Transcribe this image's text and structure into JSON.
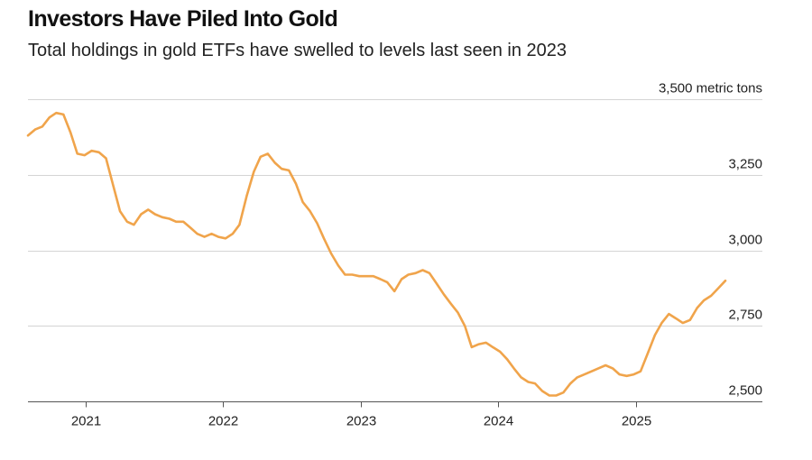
{
  "chart_data": {
    "type": "line",
    "title": "Investors Have Piled Into Gold",
    "subtitle": "Total holdings in gold ETFs have swelled to levels last seen in 2023",
    "ylabel": "",
    "xlabel": "",
    "yunit": "metric tons",
    "ylim": [
      2450,
      3560
    ],
    "xlim": [
      "2020-08-01",
      "2025-12-01"
    ],
    "grid": true,
    "legend": "none",
    "line_color": "#F0A44B",
    "y_ticks": [
      {
        "value": 2500,
        "label": "2,500"
      },
      {
        "value": 2750,
        "label": "2,750"
      },
      {
        "value": 3000,
        "label": "3,000"
      },
      {
        "value": 3250,
        "label": "3,250"
      },
      {
        "value": 3500,
        "label": "3,500 metric tons"
      }
    ],
    "x_ticks": [
      {
        "value": "2021-01-01",
        "label": "2021"
      },
      {
        "value": "2022-01-01",
        "label": "2022"
      },
      {
        "value": "2023-01-01",
        "label": "2023"
      },
      {
        "value": "2024-01-01",
        "label": "2024"
      },
      {
        "value": "2025-01-01",
        "label": "2025"
      }
    ],
    "series": [
      {
        "x": [
          "2020-08-01",
          "2020-08-20",
          "2020-09-08",
          "2020-09-27",
          "2020-10-15",
          "2020-11-03",
          "2020-11-22",
          "2020-12-10",
          "2020-12-29",
          "2021-01-17",
          "2021-02-05",
          "2021-02-24",
          "2021-03-14",
          "2021-04-02",
          "2021-04-21",
          "2021-05-09",
          "2021-05-28",
          "2021-06-16",
          "2021-07-04",
          "2021-07-23",
          "2021-08-11",
          "2021-08-29",
          "2021-09-17",
          "2021-10-06",
          "2021-10-24",
          "2021-11-12",
          "2021-12-01",
          "2021-12-19",
          "2022-01-07",
          "2022-01-26",
          "2022-02-13",
          "2022-03-04",
          "2022-03-23",
          "2022-04-10",
          "2022-04-29",
          "2022-05-18",
          "2022-06-05",
          "2022-06-24",
          "2022-07-13",
          "2022-07-31",
          "2022-08-19",
          "2022-09-07",
          "2022-09-25",
          "2022-10-14",
          "2022-11-02",
          "2022-11-20",
          "2022-12-09",
          "2022-12-28",
          "2023-01-15",
          "2023-02-03",
          "2023-02-22",
          "2023-03-12",
          "2023-03-31",
          "2023-04-19",
          "2023-05-07",
          "2023-05-26",
          "2023-06-14",
          "2023-07-02",
          "2023-07-21",
          "2023-08-09",
          "2023-08-27",
          "2023-09-15",
          "2023-10-04",
          "2023-10-22",
          "2023-11-10",
          "2023-11-29",
          "2023-12-17",
          "2024-01-05",
          "2024-01-24",
          "2024-02-11",
          "2024-03-01",
          "2024-03-20",
          "2024-04-07",
          "2024-04-26",
          "2024-05-15",
          "2024-06-02",
          "2024-06-21",
          "2024-07-10",
          "2024-07-28",
          "2024-08-16",
          "2024-09-04",
          "2024-09-22",
          "2024-10-11",
          "2024-10-30",
          "2024-11-17",
          "2024-12-06",
          "2024-12-25",
          "2025-01-12",
          "2025-01-31",
          "2025-02-19",
          "2025-03-09",
          "2025-03-28",
          "2025-04-16",
          "2025-05-04",
          "2025-05-23",
          "2025-06-11",
          "2025-06-29",
          "2025-07-18",
          "2025-08-06",
          "2025-08-25"
        ],
        "values": [
          3380,
          3400,
          3410,
          3440,
          3455,
          3450,
          3390,
          3320,
          3315,
          3330,
          3325,
          3305,
          3220,
          3130,
          3095,
          3085,
          3120,
          3135,
          3120,
          3110,
          3105,
          3095,
          3095,
          3075,
          3055,
          3045,
          3055,
          3045,
          3040,
          3055,
          3085,
          3180,
          3260,
          3310,
          3320,
          3290,
          3270,
          3265,
          3220,
          3160,
          3130,
          3090,
          3040,
          2990,
          2950,
          2920,
          2920,
          2915,
          2915,
          2915,
          2905,
          2895,
          2865,
          2905,
          2920,
          2925,
          2935,
          2925,
          2890,
          2855,
          2825,
          2795,
          2750,
          2680,
          2690,
          2695,
          2680,
          2665,
          2640,
          2610,
          2580,
          2565,
          2560,
          2535,
          2520,
          2520,
          2530,
          2560,
          2580,
          2590,
          2600,
          2610,
          2620,
          2610,
          2590,
          2585,
          2590,
          2600,
          2660,
          2720,
          2760,
          2790,
          2775,
          2760,
          2770,
          2810,
          2835,
          2850,
          2875,
          2900
        ]
      }
    ]
  }
}
